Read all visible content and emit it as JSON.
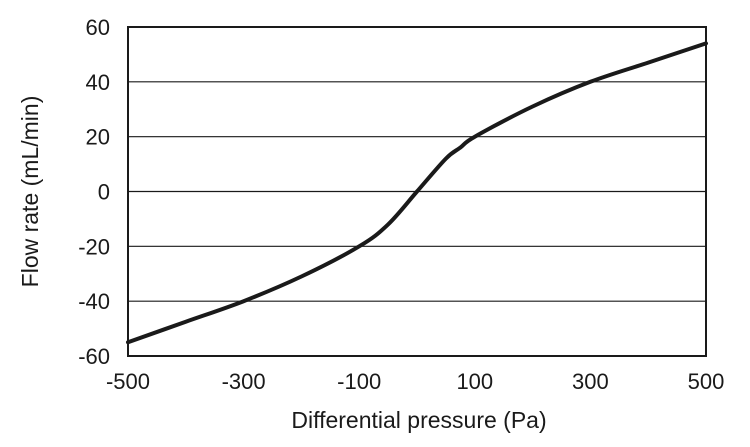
{
  "chart_data": {
    "type": "line",
    "title": "",
    "xlabel": "Differential pressure (Pa)",
    "ylabel": "Flow rate (mL/min)",
    "xlim": [
      -500,
      500
    ],
    "ylim": [
      -60,
      60
    ],
    "x_ticks": [
      -500,
      -300,
      -100,
      100,
      300,
      500
    ],
    "y_ticks": [
      60,
      40,
      20,
      0,
      -20,
      -40,
      -60
    ],
    "grid": "horizontal",
    "legend": "none",
    "series": [
      {
        "color": "#1a1a1a",
        "x": [
          -500,
          -400,
          -300,
          -200,
          -100,
          -50,
          0,
          50,
          75,
          100,
          200,
          300,
          400,
          500
        ],
        "y": [
          -55,
          -47.5,
          -40,
          -31,
          -20,
          -12,
          0,
          12,
          16,
          20,
          31,
          40,
          47,
          54
        ]
      }
    ]
  }
}
